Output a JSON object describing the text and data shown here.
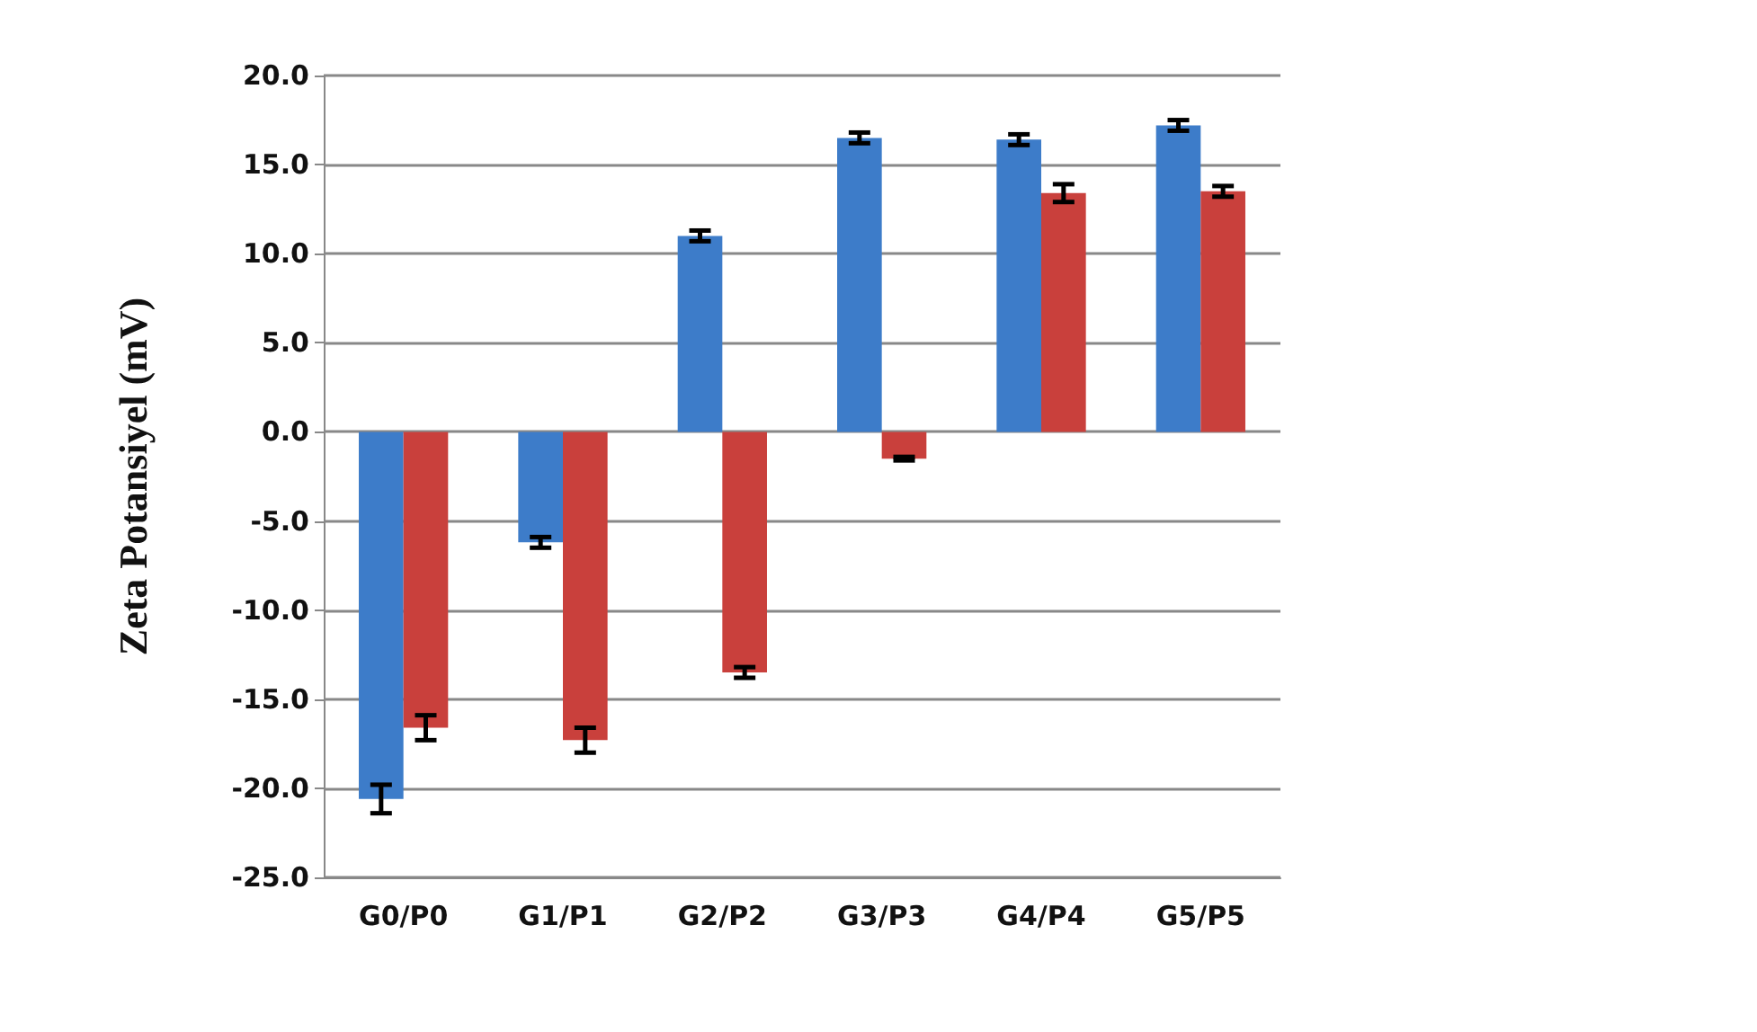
{
  "chart_data": {
    "type": "bar",
    "ylabel": "Zeta Potansiyel (mV)",
    "categories": [
      "G0/P0",
      "G1/P1",
      "G2/P2",
      "G3/P3",
      "G4/P4",
      "G5/P5"
    ],
    "series": [
      {
        "color": "#3d7cc9",
        "values": [
          -20.6,
          -6.2,
          11.0,
          16.5,
          16.4,
          17.2
        ],
        "errors": [
          0.8,
          0.3,
          0.3,
          0.3,
          0.3,
          0.3
        ]
      },
      {
        "color": "#c9403c",
        "values": [
          -16.6,
          -17.3,
          -13.5,
          -1.5,
          13.4,
          13.5
        ],
        "errors": [
          0.7,
          0.7,
          0.3,
          0.1,
          0.5,
          0.3
        ]
      }
    ],
    "ylim": [
      -25,
      20
    ],
    "yticks": [
      {
        "value": -25,
        "label": "-25.0"
      },
      {
        "value": -20,
        "label": "-20.0"
      },
      {
        "value": -15,
        "label": "-15.0"
      },
      {
        "value": -10,
        "label": "-10.0"
      },
      {
        "value": -5,
        "label": "-5.0"
      },
      {
        "value": 0,
        "label": "0.0"
      },
      {
        "value": 5,
        "label": "5.0"
      },
      {
        "value": 10,
        "label": "10.0"
      },
      {
        "value": 15,
        "label": "15.0"
      },
      {
        "value": 20,
        "label": "20.0"
      }
    ],
    "grid": "y"
  }
}
